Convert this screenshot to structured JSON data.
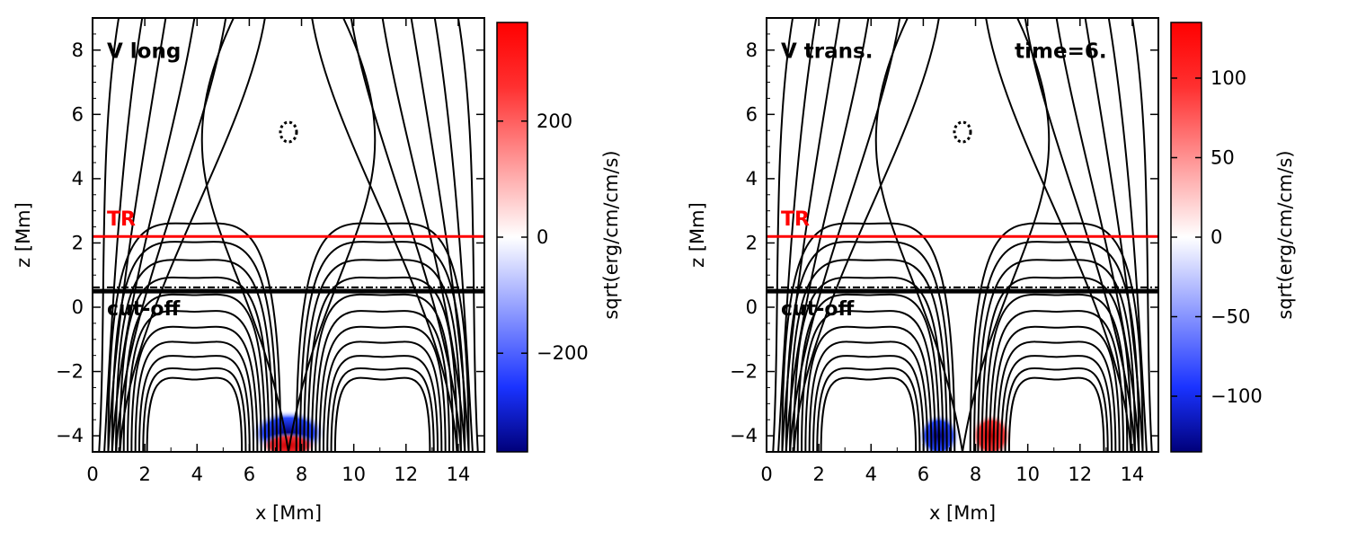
{
  "chart_data": [
    {
      "type": "heatmap",
      "panel_label": "V long",
      "annotation": "",
      "xlabel": "x [Mm]",
      "ylabel": "z [Mm]",
      "xlim": [
        0,
        15
      ],
      "ylim": [
        -4.5,
        9
      ],
      "x_ticks": [
        0,
        2,
        4,
        6,
        8,
        10,
        12,
        14
      ],
      "y_ticks": [
        -4,
        -2,
        0,
        2,
        4,
        6,
        8
      ],
      "colorbar": {
        "label": "sqrt(erg/cm/cm/s)",
        "range": [
          -370,
          370
        ],
        "ticks": [
          -200,
          0,
          200
        ],
        "tick_labels": [
          "−200",
          "0",
          "200"
        ],
        "colormap": [
          "#00007a",
          "#1a33ff",
          "#ffffff",
          "#ff3030",
          "#ff0000"
        ]
      },
      "levels": [
        {
          "name": "TR",
          "z": 2.2,
          "color": "#ff0000"
        },
        {
          "name": "cut-off",
          "z": 0.5,
          "color": "#000000"
        }
      ],
      "blobs": [
        {
          "cx": 7.5,
          "cz": -3.9,
          "rx": 1.5,
          "rz": 0.7,
          "sign": -1
        },
        {
          "cx": 7.5,
          "cz": -4.3,
          "rx": 1.1,
          "rz": 0.4,
          "sign": 1
        }
      ]
    },
    {
      "type": "heatmap",
      "panel_label": "V trans.",
      "annotation": "time=6.",
      "xlabel": "x [Mm]",
      "ylabel": "z [Mm]",
      "xlim": [
        0,
        15
      ],
      "ylim": [
        -4.5,
        9
      ],
      "x_ticks": [
        0,
        2,
        4,
        6,
        8,
        10,
        12,
        14
      ],
      "y_ticks": [
        -4,
        -2,
        0,
        2,
        4,
        6,
        8
      ],
      "colorbar": {
        "label": "sqrt(erg/cm/cm/s)",
        "range": [
          -135,
          135
        ],
        "ticks": [
          -100,
          -50,
          0,
          50,
          100
        ],
        "tick_labels": [
          "−100",
          "−50",
          "0",
          "50",
          "100"
        ],
        "colormap": [
          "#00007a",
          "#1a33ff",
          "#ffffff",
          "#ff3030",
          "#ff0000"
        ]
      },
      "levels": [
        {
          "name": "TR",
          "z": 2.2,
          "color": "#ff0000"
        },
        {
          "name": "cut-off",
          "z": 0.5,
          "color": "#000000"
        }
      ],
      "blobs": [
        {
          "cx": 6.6,
          "cz": -4.0,
          "rx": 0.8,
          "rz": 0.7,
          "sign": -1
        },
        {
          "cx": 8.6,
          "cz": -4.0,
          "rx": 0.8,
          "rz": 0.7,
          "sign": 1
        }
      ]
    }
  ]
}
